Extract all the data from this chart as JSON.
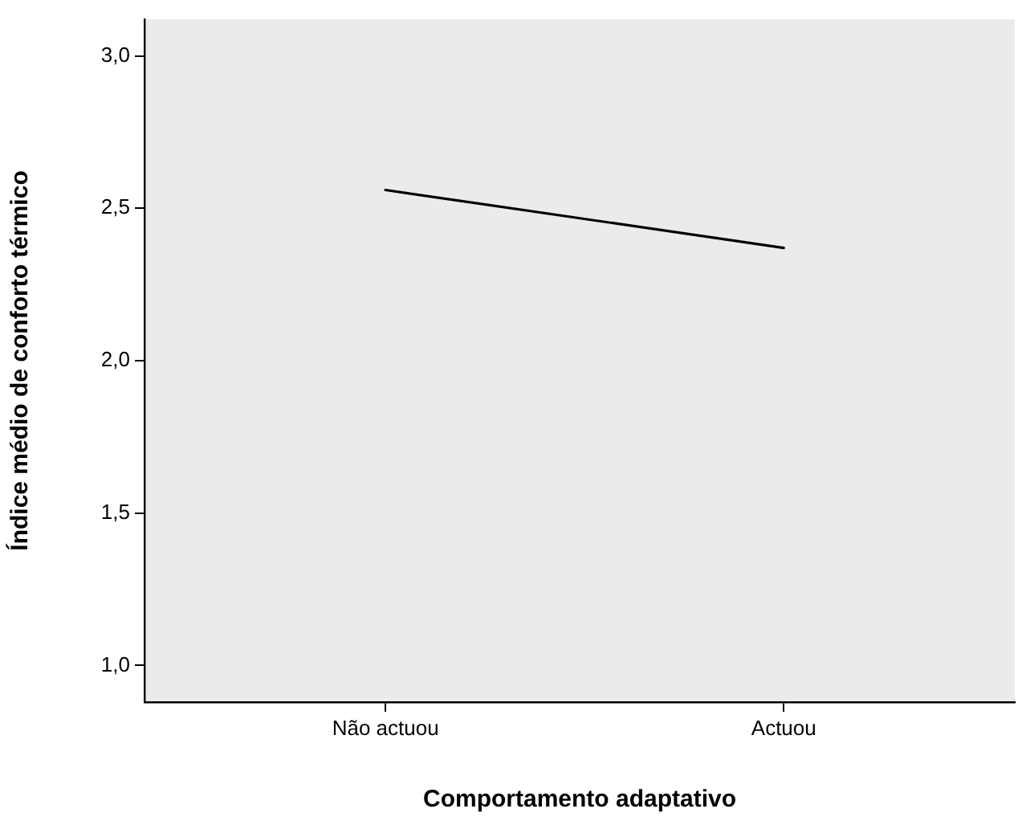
{
  "chart_data": {
    "type": "line",
    "xlabel": "Comportamento adaptativo",
    "ylabel": "Índice médio de conforto térmico",
    "categories": [
      "Não actuou",
      "Actuou"
    ],
    "series": [
      {
        "color": "#000000",
        "values": [
          2.56,
          2.37
        ]
      }
    ],
    "ylim": [
      0.88,
      3.12
    ],
    "yticks": [
      {
        "value": 1,
        "label": "1,0"
      },
      {
        "value": 1.5,
        "label": "1,5"
      },
      {
        "value": 2,
        "label": "2,0"
      },
      {
        "value": 2.5,
        "label": "2,5"
      },
      {
        "value": 3,
        "label": "3,0"
      }
    ],
    "grid": false,
    "legend": false,
    "marker": "none",
    "line_style": "solid"
  }
}
